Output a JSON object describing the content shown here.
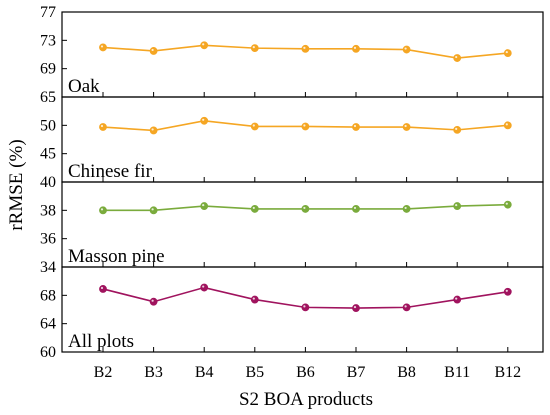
{
  "chart_data": {
    "type": "line",
    "xlabel": "S2 BOA products",
    "ylabel": "rRMSE (%)",
    "categories": [
      "B2",
      "B3",
      "B4",
      "B5",
      "B6",
      "B7",
      "B8",
      "B11",
      "B12"
    ],
    "panels": [
      {
        "name": "Oak",
        "color": "#f5a623",
        "ylim": [
          65,
          77
        ],
        "yticks": [
          "77",
          "73",
          "69",
          "65"
        ],
        "tick_values": [
          77,
          73,
          69,
          65
        ],
        "values": [
          72.0,
          71.5,
          72.3,
          71.9,
          71.8,
          71.8,
          71.7,
          70.5,
          71.2
        ]
      },
      {
        "name": "Chinese fir",
        "color": "#f5a623",
        "ylim": [
          40,
          55
        ],
        "yticks": [
          "50",
          "45",
          "40"
        ],
        "tick_values": [
          50,
          45,
          40
        ],
        "values": [
          49.7,
          49.1,
          50.8,
          49.8,
          49.8,
          49.7,
          49.7,
          49.2,
          50.0
        ]
      },
      {
        "name": "Masson pine",
        "color": "#7aab3c",
        "ylim": [
          34,
          40
        ],
        "yticks": [
          "38",
          "36",
          "34"
        ],
        "tick_values": [
          38,
          36,
          34
        ],
        "values": [
          38.0,
          38.0,
          38.3,
          38.1,
          38.1,
          38.1,
          38.1,
          38.3,
          38.4
        ]
      },
      {
        "name": "All plots",
        "color": "#a0135e",
        "ylim": [
          60,
          72
        ],
        "yticks": [
          "68",
          "64",
          "60"
        ],
        "tick_values": [
          68,
          64,
          60
        ],
        "values": [
          68.9,
          67.1,
          69.1,
          67.4,
          66.3,
          66.2,
          66.3,
          67.4,
          68.5
        ]
      }
    ]
  }
}
